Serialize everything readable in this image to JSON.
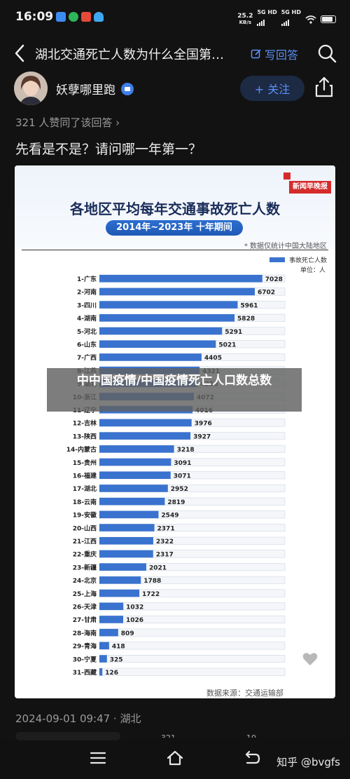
{
  "status_bar": {
    "time": "16:09",
    "speed": "25.2",
    "speed_unit": "KB/s",
    "sig1": "5G HD",
    "sig2": "5G HD"
  },
  "header": {
    "title": "湖北交通死亡人数为什么全国第…",
    "write_label": "写回答"
  },
  "author": {
    "name": "妖孽哪里跑",
    "follow_label": "+ 关注"
  },
  "answer": {
    "agree_text": "321 人赞同了该回答 ›",
    "text": "先看是不是？请问哪一年第一？"
  },
  "chart_data": {
    "type": "bar",
    "title": "各地区平均每年交通事故死亡人数",
    "subtitle": "2014年~2023年 十年期间",
    "note": "* 数据仅统计中国大陆地区",
    "brand": "新闻早晚报",
    "legend": "事故死亡人数",
    "unit": "单位：人",
    "source": "数据来源：交通运输部",
    "bar_color": "#3a73cf",
    "xlim": [
      0,
      8000
    ],
    "categories": [
      "1-广东",
      "2-河南",
      "3-四川",
      "4-湖南",
      "5-河北",
      "6-山东",
      "7-广西",
      "8-江苏",
      "9-湖北",
      "10-浙江",
      "11-辽宁",
      "12-吉林",
      "13-陕西",
      "14-内蒙古",
      "15-贵州",
      "16-福建",
      "17-湖北",
      "18-云南",
      "19-安徽",
      "20-山西",
      "21-江西",
      "22-重庆",
      "23-新疆",
      "24-北京",
      "25-上海",
      "26-天津",
      "27-甘肃",
      "28-海南",
      "29-青海",
      "30-宁夏",
      "31-西藏"
    ],
    "values": [
      7028,
      6702,
      5961,
      5828,
      5291,
      5021,
      4405,
      4321,
      4236,
      4072,
      4016,
      3976,
      3927,
      3218,
      3091,
      3071,
      2952,
      2819,
      2549,
      2371,
      2322,
      2317,
      2021,
      1788,
      1722,
      1032,
      1026,
      809,
      418,
      325,
      126
    ]
  },
  "overlay": {
    "text": "中中国疫情/中国疫情死亡人口数总数"
  },
  "meta": {
    "date_location": "2024-09-01 09:47 · 湖北",
    "count_a": "321",
    "count_b": "10"
  },
  "watermark": "知乎 @bvgfs"
}
